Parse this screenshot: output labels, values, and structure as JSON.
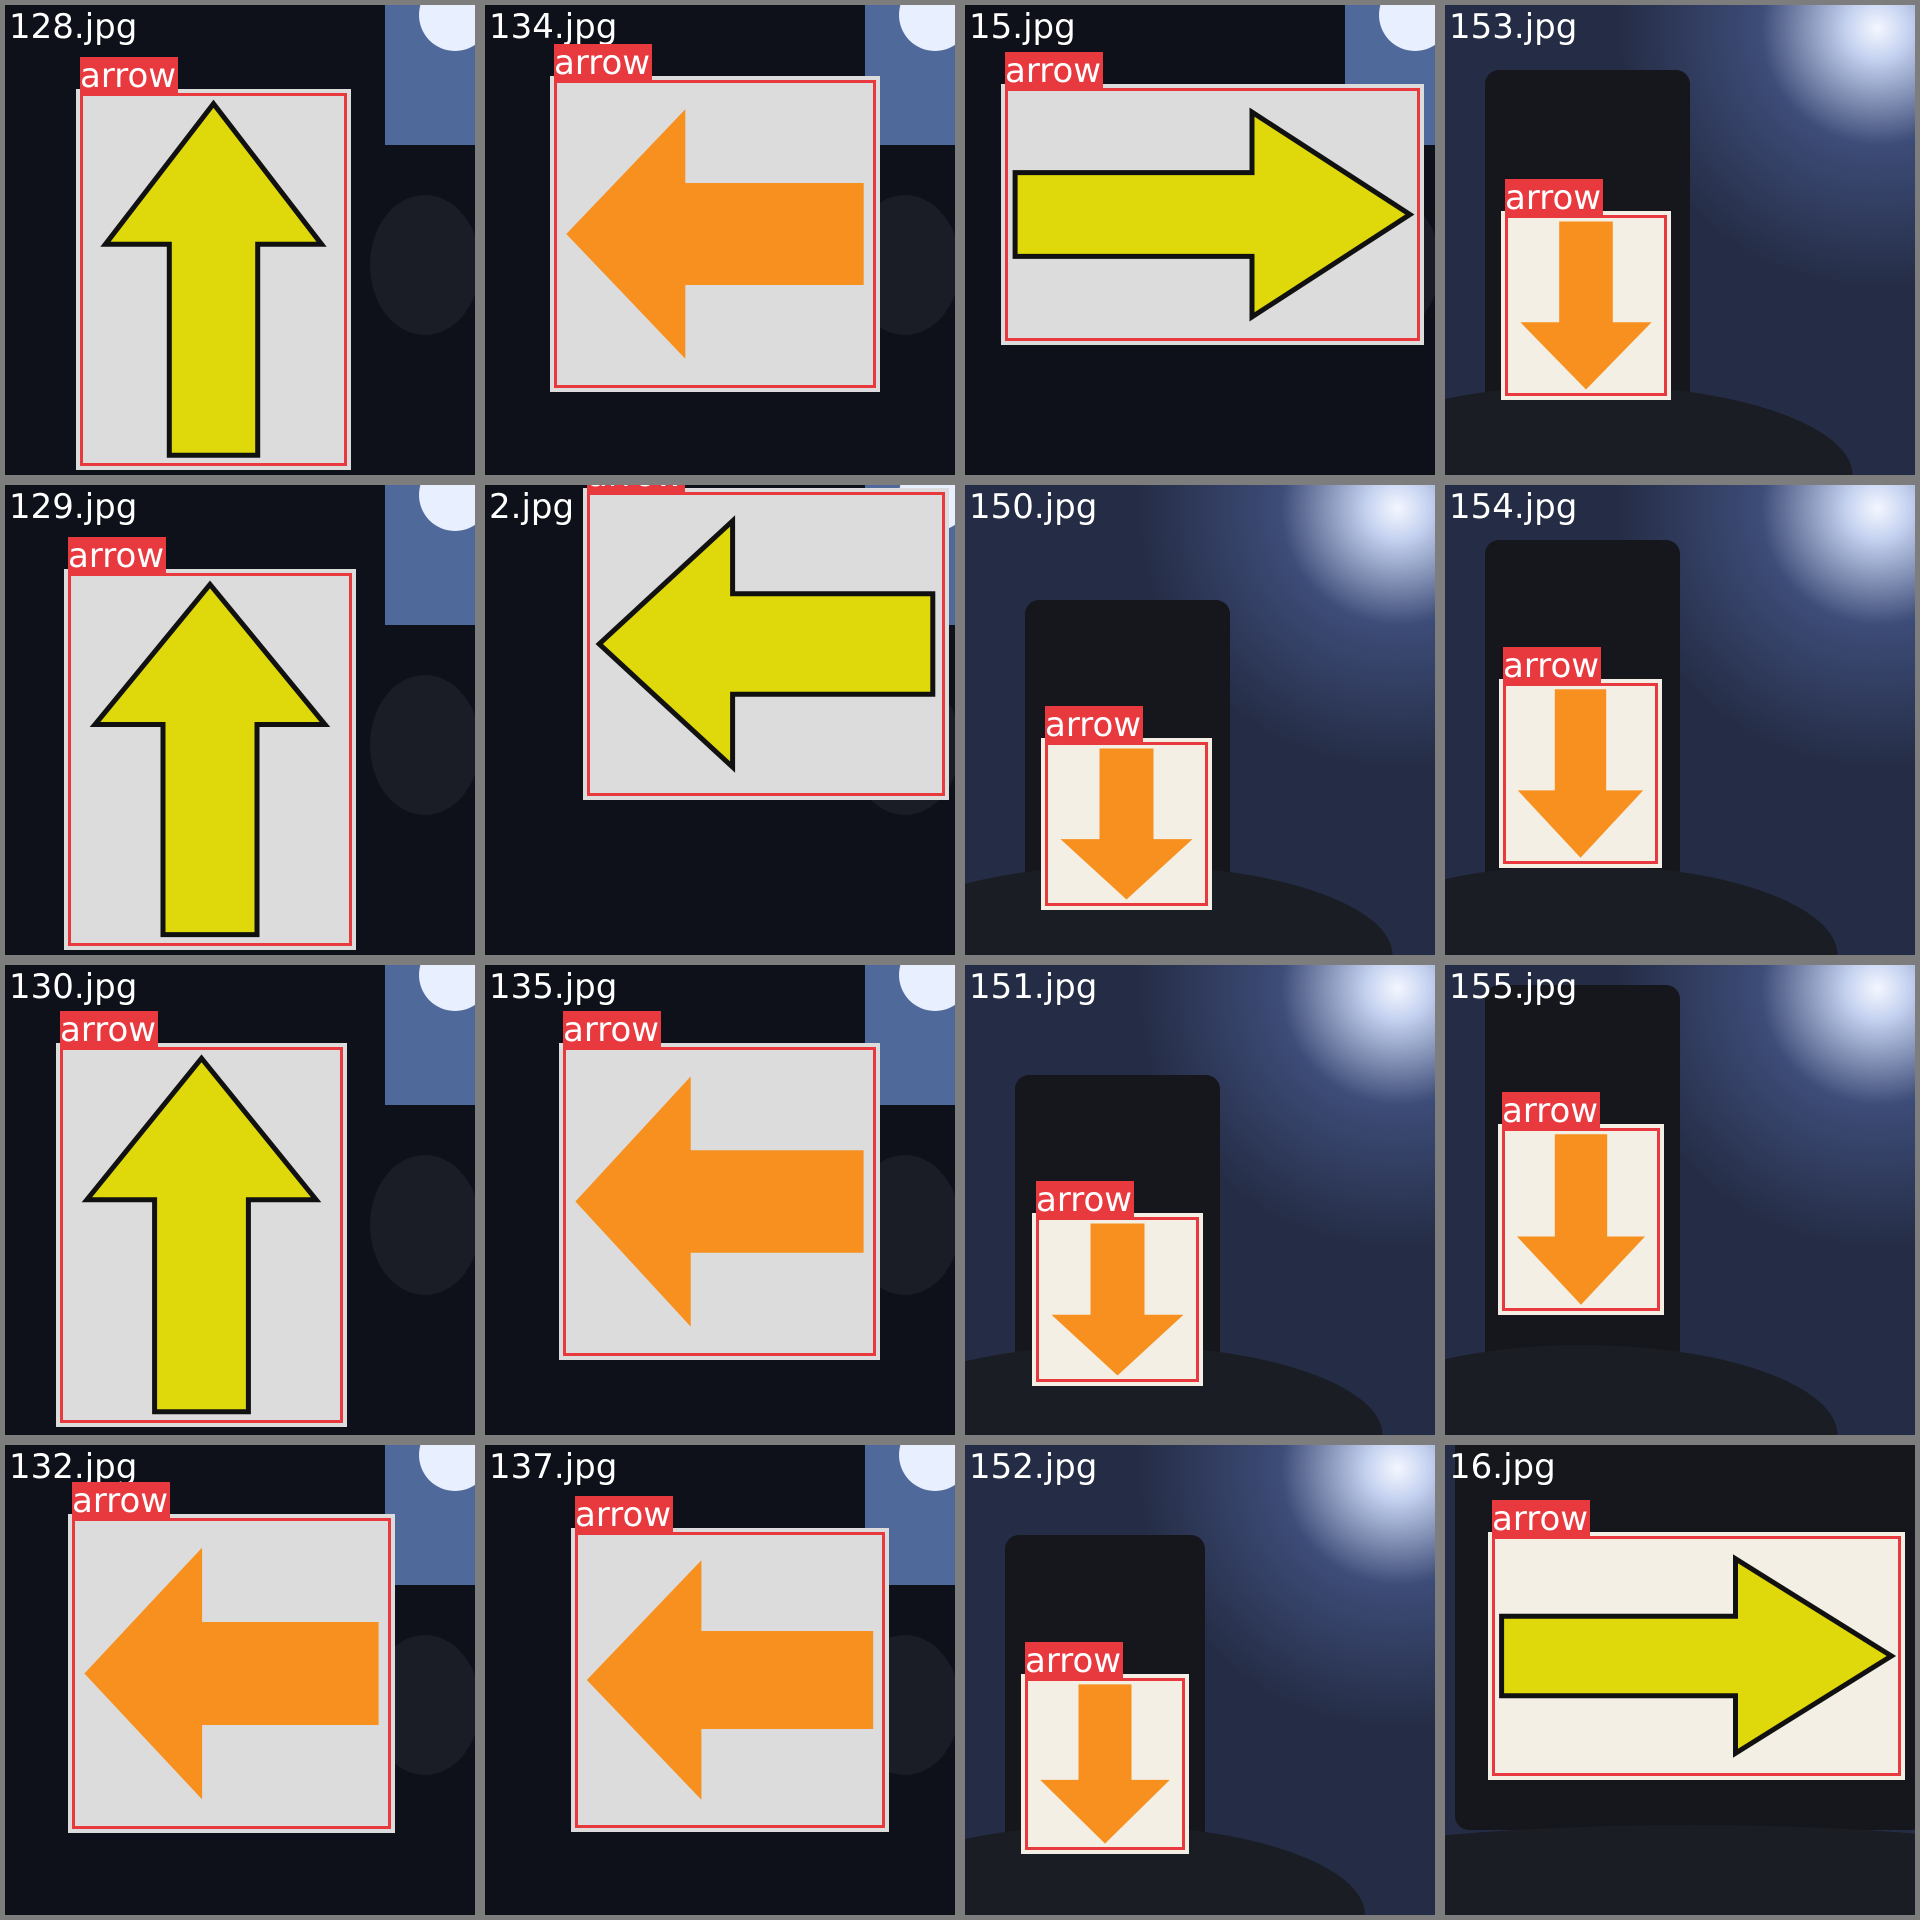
{
  "mosaic": {
    "tiles": [
      {
        "file": "128.jpg",
        "label": "arrow",
        "arrow": "up",
        "color": "yellow"
      },
      {
        "file": "134.jpg",
        "label": "arrow",
        "arrow": "left",
        "color": "orange"
      },
      {
        "file": "15.jpg",
        "label": "arrow",
        "arrow": "right",
        "color": "yellow"
      },
      {
        "file": "153.jpg",
        "label": "arrow",
        "arrow": "down",
        "color": "orange"
      },
      {
        "file": "129.jpg",
        "label": "arrow",
        "arrow": "up",
        "color": "yellow"
      },
      {
        "file": "2.jpg",
        "label": "arrow",
        "arrow": "left",
        "color": "yellow"
      },
      {
        "file": "150.jpg",
        "label": "arrow",
        "arrow": "down",
        "color": "orange"
      },
      {
        "file": "154.jpg",
        "label": "arrow",
        "arrow": "down",
        "color": "orange"
      },
      {
        "file": "130.jpg",
        "label": "arrow",
        "arrow": "up",
        "color": "yellow"
      },
      {
        "file": "135.jpg",
        "label": "arrow",
        "arrow": "left",
        "color": "orange"
      },
      {
        "file": "151.jpg",
        "label": "arrow",
        "arrow": "down",
        "color": "orange"
      },
      {
        "file": "155.jpg",
        "label": "arrow",
        "arrow": "down",
        "color": "orange"
      },
      {
        "file": "132.jpg",
        "label": "arrow",
        "arrow": "left",
        "color": "orange"
      },
      {
        "file": "137.jpg",
        "label": "arrow",
        "arrow": "left",
        "color": "orange"
      },
      {
        "file": "152.jpg",
        "label": "arrow",
        "arrow": "down",
        "color": "orange"
      },
      {
        "file": "16.jpg",
        "label": "arrow",
        "arrow": "right",
        "color": "yellow"
      }
    ]
  },
  "colors": {
    "box": "#e8393f",
    "yellow": "#dfd80a",
    "orange": "#f7901e",
    "border": "#7d7d7d"
  }
}
